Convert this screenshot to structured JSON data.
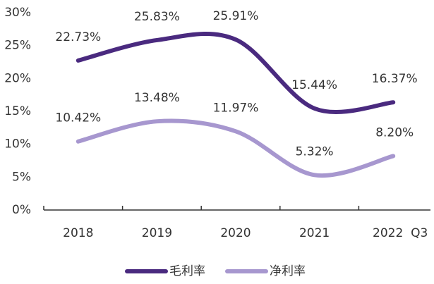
{
  "chart_data": {
    "type": "line",
    "categories": [
      "2018",
      "2019",
      "2020",
      "2021",
      "2022  Q3"
    ],
    "series": [
      {
        "name": "毛利率",
        "color": "#4a2a7f",
        "values": [
          22.73,
          25.83,
          25.91,
          15.44,
          16.37
        ],
        "value_labels": [
          "22.73%",
          "25.83%",
          "25.91%",
          "15.44%",
          "16.37%"
        ]
      },
      {
        "name": "净利率",
        "color": "#a797cf",
        "values": [
          10.42,
          13.48,
          11.97,
          5.32,
          8.2
        ],
        "value_labels": [
          "10.42%",
          "13.48%",
          "11.97%",
          "5.32%",
          "8.20%"
        ]
      }
    ],
    "ylim": [
      0,
      30
    ],
    "yticks": [
      {
        "value": 0,
        "label": "0%"
      },
      {
        "value": 5,
        "label": "5%"
      },
      {
        "value": 10,
        "label": "10%"
      },
      {
        "value": 15,
        "label": "15%"
      },
      {
        "value": 20,
        "label": "20%"
      },
      {
        "value": 25,
        "label": "25%"
      },
      {
        "value": 30,
        "label": "30%"
      }
    ],
    "legend": "bottom"
  }
}
